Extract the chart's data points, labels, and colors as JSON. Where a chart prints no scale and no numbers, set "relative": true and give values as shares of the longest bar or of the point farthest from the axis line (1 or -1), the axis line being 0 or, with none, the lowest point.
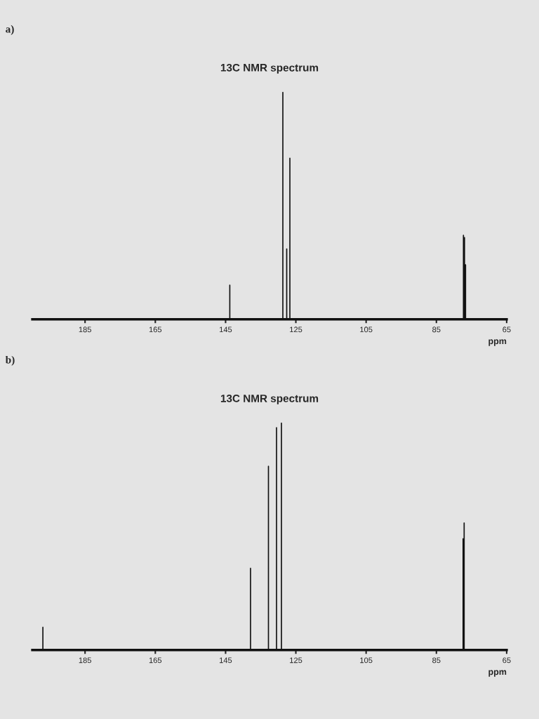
{
  "chart_data": [
    {
      "type": "line",
      "title": "13C NMR spectrum",
      "xlabel": "ppm",
      "annotations": [
        "a)"
      ],
      "relative": true,
      "xlim": [
        200,
        65
      ],
      "xticks": [
        185,
        165,
        145,
        125,
        105,
        85,
        65
      ],
      "series": [
        {
          "color": "#111111",
          "x": [
            200,
            143.8,
            143.8,
            143.8,
            128.7,
            128.7,
            128.7,
            127.6,
            127.6,
            127.6,
            126.7,
            126.7,
            126.7,
            77.3,
            77.3,
            77.3,
            77.0,
            77.0,
            77.0,
            76.7,
            76.7,
            76.7,
            65
          ],
          "values": [
            0,
            0,
            0.15,
            0,
            0,
            1,
            0,
            0,
            0.31,
            0,
            0,
            0.71,
            0,
            0,
            0.37,
            0,
            0,
            0.36,
            0,
            0,
            0.24,
            0,
            0
          ]
        }
      ]
    },
    {
      "type": "line",
      "title": "13C NMR spectrum",
      "xlabel": "ppm",
      "annotations": [
        "b)"
      ],
      "relative": true,
      "xlim": [
        200,
        65
      ],
      "xticks": [
        185,
        165,
        145,
        125,
        105,
        85,
        65
      ],
      "series": [
        {
          "color": "#111111",
          "x": [
            200,
            197,
            197,
            197,
            137.9,
            137.9,
            137.9,
            132.8,
            132.8,
            132.8,
            130.5,
            130.5,
            130.5,
            129.1,
            129.1,
            129.1,
            77.4,
            77.4,
            77.4,
            77.1,
            77.1,
            77.1,
            65
          ],
          "values": [
            0,
            0,
            0.1,
            0,
            0,
            0.36,
            0,
            0,
            0.81,
            0,
            0,
            0.98,
            0,
            0,
            1,
            0,
            0,
            0.49,
            0,
            0,
            0.56,
            0,
            0
          ]
        }
      ]
    }
  ]
}
